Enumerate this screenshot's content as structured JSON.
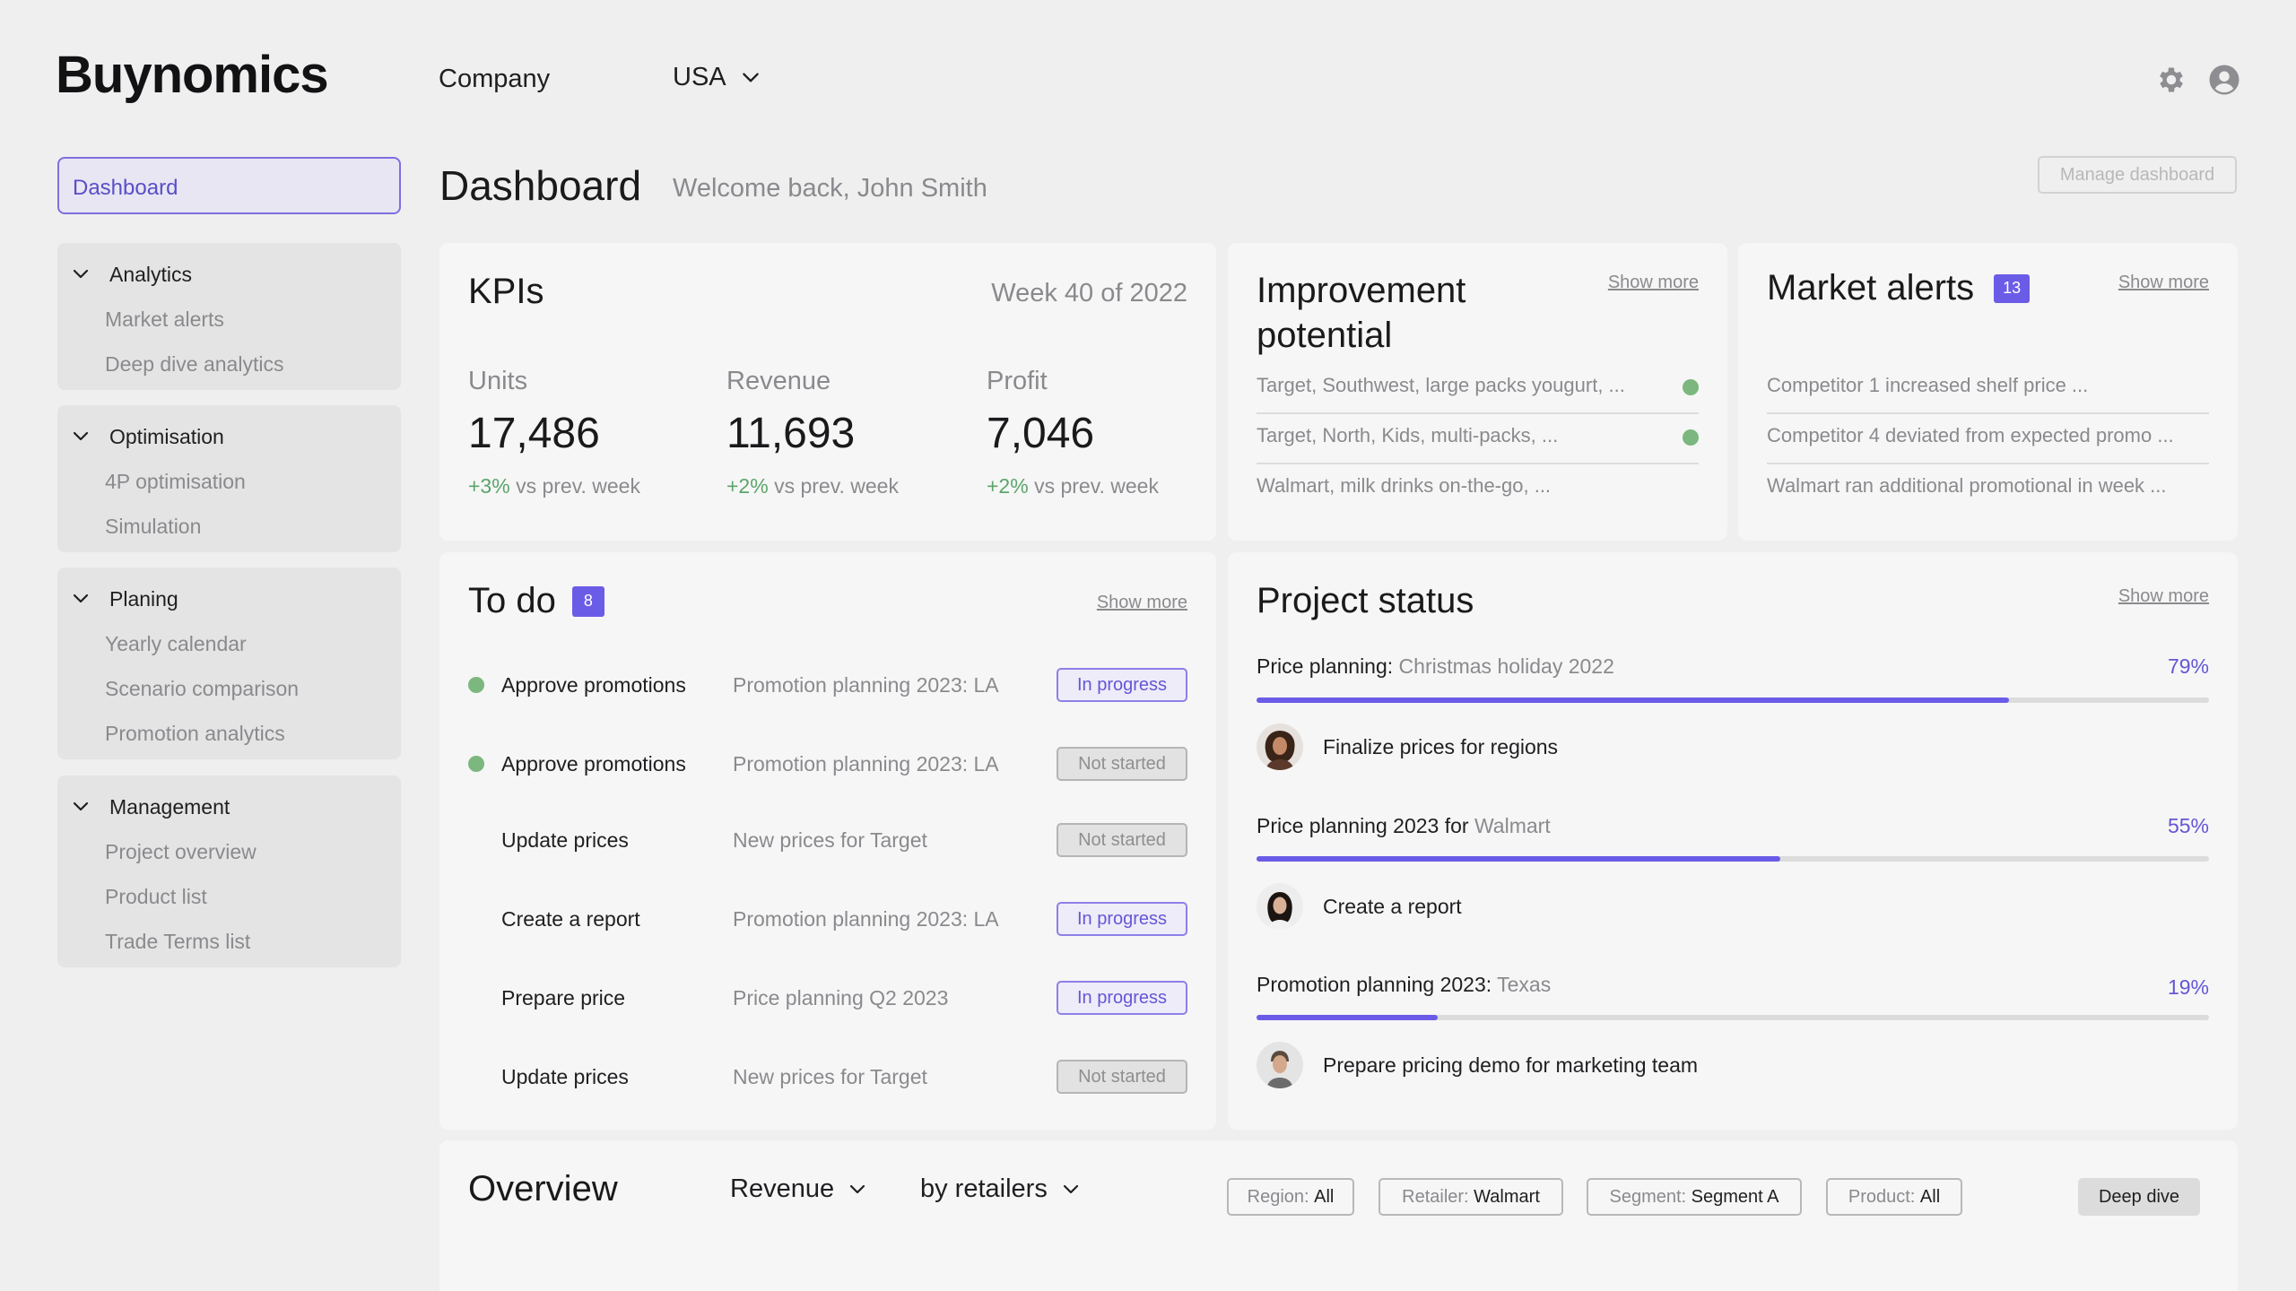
{
  "header": {
    "logo": "Buynomics",
    "company": "Company",
    "country": "USA"
  },
  "sidebar": {
    "dashboard": "Dashboard",
    "groups": [
      {
        "title": "Analytics",
        "items": [
          "Market alerts",
          "Deep dive analytics"
        ]
      },
      {
        "title": "Optimisation",
        "items": [
          "4P optimisation",
          "Simulation"
        ]
      },
      {
        "title": "Planing",
        "items": [
          "Yearly calendar",
          "Scenario comparison",
          "Promotion analytics"
        ]
      },
      {
        "title": "Management",
        "items": [
          "Project overview",
          "Product list",
          "Trade Terms list"
        ]
      }
    ]
  },
  "page": {
    "title": "Dashboard",
    "welcome": "Welcome back, John Smith",
    "manage_button": "Manage dashboard"
  },
  "kpis": {
    "title": "KPIs",
    "week": "Week 40 of 2022",
    "items": [
      {
        "label": "Units",
        "value": "17,486",
        "delta": "+3%",
        "delta_suffix": "vs prev. week"
      },
      {
        "label": "Revenue",
        "value": "11,693",
        "delta": "+2%",
        "delta_suffix": "vs prev. week"
      },
      {
        "label": "Profit",
        "value": "7,046",
        "delta": "+2%",
        "delta_suffix": "vs prev. week"
      }
    ]
  },
  "improvement": {
    "title_line1": "Improvement",
    "title_line2": "potential",
    "show_more": "Show more",
    "rows": [
      {
        "text": "Target, Southwest, large packs yougurt, ...",
        "dot": true
      },
      {
        "text": "Target, North, Kids, multi-packs, ...",
        "dot": true
      },
      {
        "text": "Walmart, milk drinks on-the-go, ...",
        "dot": false
      }
    ]
  },
  "market_alerts": {
    "title": "Market alerts",
    "badge": "13",
    "show_more": "Show more",
    "rows": [
      "Competitor 1 increased shelf price ...",
      "Competitor 4 deviated from expected promo ...",
      "Walmart ran additional promotional in week ..."
    ]
  },
  "todo": {
    "title": "To do",
    "badge": "8",
    "show_more": "Show more",
    "rows": [
      {
        "task": "Approve promotions",
        "project": "Promotion planning 2023: LA",
        "status": "In progress",
        "dot": true
      },
      {
        "task": "Approve promotions",
        "project": "Promotion planning 2023: LA",
        "status": "Not started",
        "dot": true
      },
      {
        "task": "Update prices",
        "project": "New prices for Target",
        "status": "Not started",
        "dot": false
      },
      {
        "task": "Create a report",
        "project": "Promotion planning 2023: LA",
        "status": "In progress",
        "dot": false
      },
      {
        "task": "Prepare price",
        "project": "Price planning Q2 2023",
        "status": "In progress",
        "dot": false
      },
      {
        "task": "Update prices",
        "project": "New prices for Target",
        "status": "Not started",
        "dot": false
      }
    ]
  },
  "project_status": {
    "title": "Project status",
    "show_more": "Show more",
    "projects": [
      {
        "name": "Price planning:",
        "sub": "Christmas holiday 2022",
        "pct_label": "79%",
        "progress": 0.79,
        "task": "Finalize prices for regions"
      },
      {
        "name": "Price planning 2023 for",
        "sub": "Walmart",
        "pct_label": "55%",
        "progress": 0.55,
        "task": "Create a report"
      },
      {
        "name": "Promotion planning 2023:",
        "sub": "Texas",
        "pct_label": "19%",
        "progress": 0.19,
        "task": "Prepare pricing demo for marketing team"
      }
    ]
  },
  "overview": {
    "title": "Overview",
    "metric": "Revenue",
    "grouping": "by retailers",
    "filters": [
      {
        "key": "Region:",
        "value": "All"
      },
      {
        "key": "Retailer:",
        "value": "Walmart"
      },
      {
        "key": "Segment:",
        "value": "Segment A"
      },
      {
        "key": "Product:",
        "value": "All"
      }
    ],
    "deep_dive": "Deep dive"
  },
  "colors": {
    "accent": "#6b5ce7",
    "positive": "#5aa56a",
    "status_dot": "#7bb77f",
    "background": "#efefef",
    "card": "#f6f6f6"
  },
  "icons": [
    "settings-gear-icon",
    "user-account-icon",
    "chevron-down-icon"
  ]
}
